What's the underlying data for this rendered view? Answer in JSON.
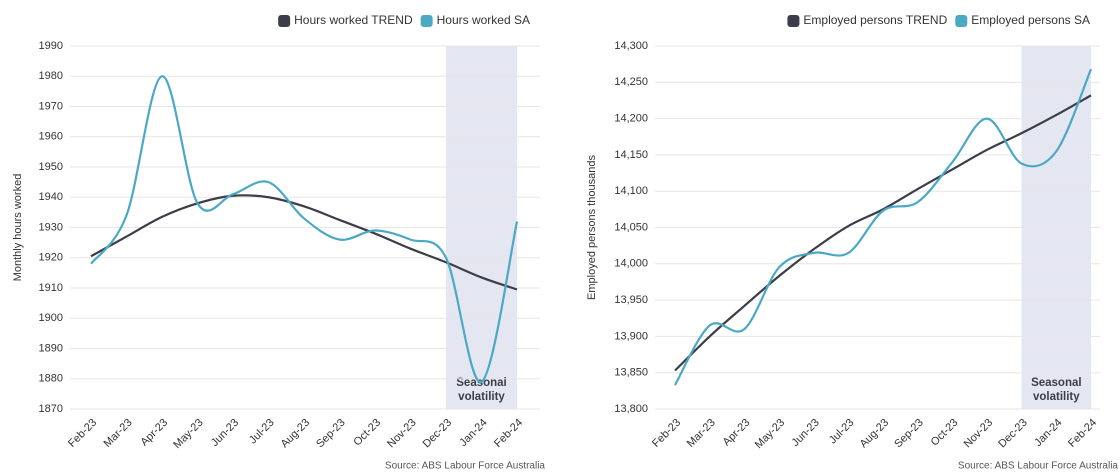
{
  "chart_data": [
    {
      "type": "line",
      "ylabel": "Monthly hours worked",
      "categories": [
        "Feb-23",
        "Mar-23",
        "Apr-23",
        "May-23",
        "Jun-23",
        "Jul-23",
        "Aug-23",
        "Sep-23",
        "Oct-23",
        "Nov-23",
        "Dec-23",
        "Jan-24",
        "Feb-24"
      ],
      "series": [
        {
          "name": "Hours worked TREND",
          "color": "#3b3e4a",
          "values": [
            1920.5,
            1927,
            1933.5,
            1938,
            1940.5,
            1940,
            1937,
            1932.5,
            1928,
            1923,
            1918.5,
            1913.5,
            1909.5
          ]
        },
        {
          "name": "Hours worked SA",
          "color": "#4ba9c4",
          "values": [
            1918,
            1934,
            1980,
            1938,
            1941,
            1945,
            1933,
            1926,
            1929,
            1926,
            1920,
            1879,
            1932
          ]
        }
      ],
      "ylim": [
        1870,
        1990
      ],
      "yticks": [
        1870,
        1880,
        1890,
        1900,
        1910,
        1920,
        1930,
        1940,
        1950,
        1960,
        1970,
        1980,
        1990
      ],
      "grid": true,
      "highlight": {
        "from": "Dec-23",
        "to": "Feb-24",
        "label": [
          "Seasonal",
          "volatility"
        ],
        "color": "#e4e7f1"
      },
      "source": "Source: ABS Labour Force Australia"
    },
    {
      "type": "line",
      "ylabel": "Employed persons thousands",
      "categories": [
        "Feb-23",
        "Mar-23",
        "Apr-23",
        "May-23",
        "Jun-23",
        "Jul-23",
        "Aug-23",
        "Sep-23",
        "Oct-23",
        "Nov-23",
        "Dec-23",
        "Jan-24",
        "Feb-24"
      ],
      "series": [
        {
          "name": "Employed persons TREND",
          "color": "#3b3e4a",
          "values": [
            13853,
            13900,
            13942,
            13983,
            14020,
            14052,
            14075,
            14103,
            14130,
            14157,
            14180,
            14205,
            14232
          ]
        },
        {
          "name": "Employed persons SA",
          "color": "#4ba9c4",
          "values": [
            13833,
            13915,
            13910,
            13995,
            14015,
            14015,
            14073,
            14085,
            14140,
            14200,
            14138,
            14155,
            14268
          ]
        }
      ],
      "ylim": [
        13800,
        14300
      ],
      "yticks": [
        {
          "value": 13800,
          "label": "13,800"
        },
        {
          "value": 13850,
          "label": "13,850"
        },
        {
          "value": 13900,
          "label": "13,900"
        },
        {
          "value": 13950,
          "label": "13,950"
        },
        {
          "value": 14000,
          "label": "14,000"
        },
        {
          "value": 14050,
          "label": "14,050"
        },
        {
          "value": 14100,
          "label": "14,100"
        },
        {
          "value": 14150,
          "label": "14,150"
        },
        {
          "value": 14200,
          "label": "14,200"
        },
        {
          "value": 14250,
          "label": "14,250"
        },
        {
          "value": 14300,
          "label": "14,300"
        }
      ],
      "grid": true,
      "highlight": {
        "from": "Dec-23",
        "to": "Feb-24",
        "label": [
          "Seasonal",
          "volatility"
        ],
        "color": "#e4e7f1"
      },
      "source": "Source: ABS Labour Force Australia"
    }
  ]
}
